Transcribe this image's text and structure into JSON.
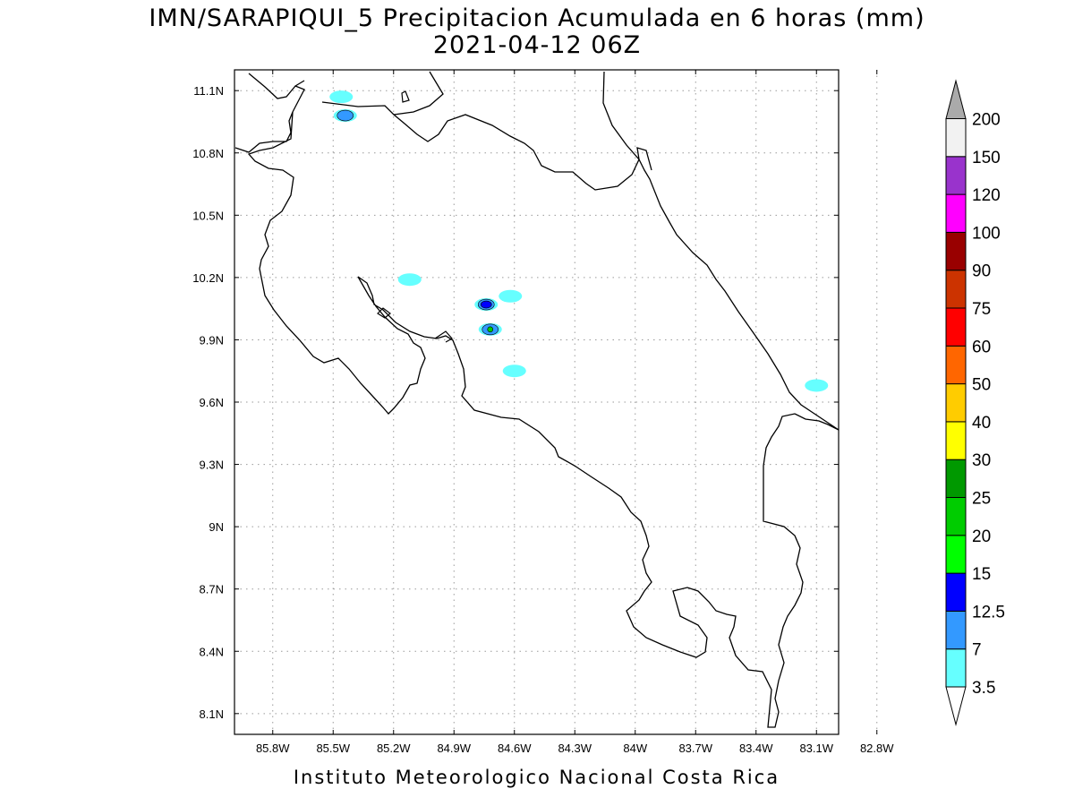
{
  "title": {
    "line1": "IMN/SARAPIQUI_5 Precipitacion Acumulada en 6 horas (mm)",
    "line2": "2021-04-12 06Z"
  },
  "footer": "Instituto Meteorologico Nacional Costa Rica",
  "map": {
    "lon_range": [
      -85.99,
      -82.99
    ],
    "lat_range": [
      8.0,
      11.2
    ],
    "lon_ticks": [
      {
        "value": -85.8,
        "label": "85.8W"
      },
      {
        "value": -85.5,
        "label": "85.5W"
      },
      {
        "value": -85.2,
        "label": "85.2W"
      },
      {
        "value": -84.9,
        "label": "84.9W"
      },
      {
        "value": -84.6,
        "label": "84.6W"
      },
      {
        "value": -84.3,
        "label": "84.3W"
      },
      {
        "value": -84.0,
        "label": "84W"
      },
      {
        "value": -83.7,
        "label": "83.7W"
      },
      {
        "value": -83.4,
        "label": "83.4W"
      },
      {
        "value": -83.1,
        "label": "83.1W"
      },
      {
        "value": -82.8,
        "label": "82.8W"
      }
    ],
    "lat_ticks": [
      {
        "value": 11.1,
        "label": "11.1N"
      },
      {
        "value": 10.8,
        "label": "10.8N"
      },
      {
        "value": 10.5,
        "label": "10.5N"
      },
      {
        "value": 10.2,
        "label": "10.2N"
      },
      {
        "value": 9.9,
        "label": "9.9N"
      },
      {
        "value": 9.6,
        "label": "9.6N"
      },
      {
        "value": 9.3,
        "label": "9.3N"
      },
      {
        "value": 9.0,
        "label": "9N"
      },
      {
        "value": 8.7,
        "label": "8.7N"
      },
      {
        "value": 8.4,
        "label": "8.4N"
      },
      {
        "value": 8.1,
        "label": "8.1N"
      }
    ],
    "grid": true,
    "precip_cells": [
      {
        "lon": -85.46,
        "lat": 11.07,
        "level_mm": 3.5
      },
      {
        "lon": -85.44,
        "lat": 10.98,
        "level_mm": 3.5
      },
      {
        "lon": -85.44,
        "lat": 10.98,
        "level_mm": 7
      },
      {
        "lon": -85.12,
        "lat": 10.19,
        "level_mm": 3.5
      },
      {
        "lon": -84.74,
        "lat": 10.07,
        "level_mm": 3.5
      },
      {
        "lon": -84.74,
        "lat": 10.07,
        "level_mm": 7
      },
      {
        "lon": -84.74,
        "lat": 10.07,
        "level_mm": 12.5
      },
      {
        "lon": -84.62,
        "lat": 10.11,
        "level_mm": 3.5
      },
      {
        "lon": -84.72,
        "lat": 9.95,
        "level_mm": 3.5
      },
      {
        "lon": -84.72,
        "lat": 9.95,
        "level_mm": 7
      },
      {
        "lon": -84.72,
        "lat": 9.95,
        "level_mm": 20
      },
      {
        "lon": -84.6,
        "lat": 9.75,
        "level_mm": 3.5
      },
      {
        "lon": -83.1,
        "lat": 9.68,
        "level_mm": 3.5
      }
    ]
  },
  "colorbar": {
    "levels": [
      {
        "label": "3.5",
        "color": "#66ffff"
      },
      {
        "label": "7",
        "color": "#3399ff"
      },
      {
        "label": "12.5",
        "color": "#0000ff"
      },
      {
        "label": "15",
        "color": "#00ff00"
      },
      {
        "label": "20",
        "color": "#00cc00"
      },
      {
        "label": "25",
        "color": "#009900"
      },
      {
        "label": "30",
        "color": "#ffff00"
      },
      {
        "label": "40",
        "color": "#ffcc00"
      },
      {
        "label": "50",
        "color": "#ff6600"
      },
      {
        "label": "60",
        "color": "#ff0000"
      },
      {
        "label": "75",
        "color": "#cc3300"
      },
      {
        "label": "90",
        "color": "#990000"
      },
      {
        "label": "100",
        "color": "#ff00ff"
      },
      {
        "label": "120",
        "color": "#9933cc"
      },
      {
        "label": "150",
        "color": "#f2f2f2"
      },
      {
        "label": "200",
        "color": "#aaaaaa"
      }
    ],
    "below_color": "#ffffff"
  }
}
